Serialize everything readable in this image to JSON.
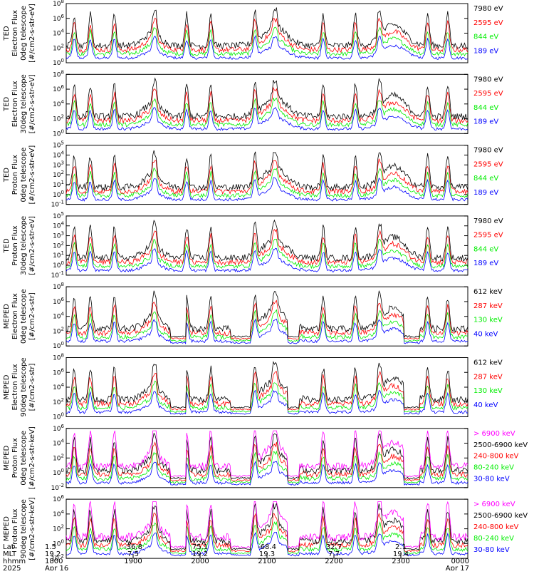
{
  "colors": {
    "black": "#000000",
    "red": "#ff0000",
    "green": "#00ee00",
    "blue": "#0000ff",
    "magenta": "#ff00ff"
  },
  "chart_data": [
    {
      "type": "line",
      "title_lines": [
        "TED",
        "Electron Flux",
        "0deg telescope",
        "[#/cm2-s-str-eV]"
      ],
      "ylim_exp": [
        0,
        8
      ],
      "ytick_labels": [
        "10^0",
        "10^2",
        "10^4",
        "10^6",
        "10^8"
      ],
      "series": [
        {
          "name": "7980 eV",
          "color": "black"
        },
        {
          "name": "2595 eV",
          "color": "red"
        },
        {
          "name": "844 eV",
          "color": "green"
        },
        {
          "name": "189 eV",
          "color": "blue"
        }
      ]
    },
    {
      "type": "line",
      "title_lines": [
        "TED",
        "Electron Flux",
        "30deg telescope",
        "[#/cm2-s-str-eV]"
      ],
      "ylim_exp": [
        0,
        8
      ],
      "ytick_labels": [
        "10^0",
        "10^2",
        "10^4",
        "10^6",
        "10^8"
      ],
      "series": [
        {
          "name": "7980 eV",
          "color": "black"
        },
        {
          "name": "2595 eV",
          "color": "red"
        },
        {
          "name": "844 eV",
          "color": "green"
        },
        {
          "name": "189 eV",
          "color": "blue"
        }
      ]
    },
    {
      "type": "line",
      "title_lines": [
        "TED",
        "Proton Flux",
        "0deg telescope",
        "[#/cm2-s-str-eV]"
      ],
      "ylim_exp": [
        -1,
        5
      ],
      "ytick_labels": [
        "10^-1",
        "10^0",
        "10^1",
        "10^2",
        "10^3",
        "10^4",
        "10^5"
      ],
      "series": [
        {
          "name": "7980 eV",
          "color": "black"
        },
        {
          "name": "2595 eV",
          "color": "red"
        },
        {
          "name": "844 eV",
          "color": "green"
        },
        {
          "name": "189 eV",
          "color": "blue"
        }
      ]
    },
    {
      "type": "line",
      "title_lines": [
        "TED",
        "Proton Flux",
        "30deg telescope",
        "[#/cm2-s-str-eV]"
      ],
      "ylim_exp": [
        -1,
        5
      ],
      "ytick_labels": [
        "10^-1",
        "10^0",
        "10^1",
        "10^2",
        "10^3",
        "10^4",
        "10^5"
      ],
      "series": [
        {
          "name": "7980 eV",
          "color": "black"
        },
        {
          "name": "2595 eV",
          "color": "red"
        },
        {
          "name": "844 eV",
          "color": "green"
        },
        {
          "name": "189 eV",
          "color": "blue"
        }
      ]
    },
    {
      "type": "line",
      "title_lines": [
        "MEPED",
        "Electron Flux",
        "0deg telescope",
        "[#/cm2-s-str]"
      ],
      "ylim_exp": [
        0,
        8
      ],
      "ytick_labels": [
        "10^0",
        "10^2",
        "10^4",
        "10^6",
        "10^8"
      ],
      "series": [
        {
          "name": "612 keV",
          "color": "black"
        },
        {
          "name": "287 keV",
          "color": "red"
        },
        {
          "name": "130 keV",
          "color": "green"
        },
        {
          "name": "40 keV",
          "color": "blue"
        }
      ]
    },
    {
      "type": "line",
      "title_lines": [
        "MEPED",
        "Electron Flux",
        "90deg telescope",
        "[#/cm2-s-str]"
      ],
      "ylim_exp": [
        0,
        8
      ],
      "ytick_labels": [
        "10^0",
        "10^2",
        "10^4",
        "10^6",
        "10^8"
      ],
      "series": [
        {
          "name": "612 keV",
          "color": "black"
        },
        {
          "name": "287 keV",
          "color": "red"
        },
        {
          "name": "130 keV",
          "color": "green"
        },
        {
          "name": "40 keV",
          "color": "blue"
        }
      ]
    },
    {
      "type": "line",
      "title_lines": [
        "MEPED",
        "Proton Flux",
        "0deg telescope",
        "[#/cm2-s-str-keV]"
      ],
      "ylim_exp": [
        -3,
        6
      ],
      "ytick_labels": [
        "10^-2",
        "10^0",
        "10^2",
        "10^4",
        "10^6"
      ],
      "series": [
        {
          "name": "> 6900 keV",
          "color": "magenta"
        },
        {
          "name": "2500-6900 keV",
          "color": "black"
        },
        {
          "name": "240-800 keV",
          "color": "red"
        },
        {
          "name": "80-240 keV",
          "color": "green"
        },
        {
          "name": "30-80 keV",
          "color": "blue"
        }
      ]
    },
    {
      "type": "line",
      "title_lines": [
        "MEPED",
        "Proton Flux",
        "90deg telescope",
        "[#/cm2-s-str-keV]"
      ],
      "ylim_exp": [
        -3,
        6
      ],
      "ytick_labels": [
        "10^-2",
        "10^0",
        "10^2",
        "10^4",
        "10^6"
      ],
      "series": [
        {
          "name": "> 6900 keV",
          "color": "magenta"
        },
        {
          "name": "2500-6900 keV",
          "color": "black"
        },
        {
          "name": "240-800 keV",
          "color": "red"
        },
        {
          "name": "80-240 keV",
          "color": "green"
        },
        {
          "name": "30-80 keV",
          "color": "blue"
        }
      ]
    }
  ],
  "x_axis": {
    "row_labels": [
      "Lat",
      "MLT",
      "hhmm",
      "2025"
    ],
    "ticks": [
      {
        "lat": "1.5",
        "mlt": "19.2",
        "hhmm": "1800",
        "date": "Apr 16"
      },
      {
        "lat": "-36.8",
        "mlt": "7.5",
        "hhmm": "1900",
        "date": ""
      },
      {
        "lat": "75.1",
        "mlt": "19.2",
        "hhmm": "2000",
        "date": ""
      },
      {
        "lat": "-68.4",
        "mlt": "19.3",
        "hhmm": "2100",
        "date": ""
      },
      {
        "lat": "32.7",
        "mlt": "7.7",
        "hhmm": "2200",
        "date": ""
      },
      {
        "lat": "2.1",
        "mlt": "19.4",
        "hhmm": "2300",
        "date": ""
      },
      {
        "lat": "",
        "mlt": "",
        "hhmm": "0000",
        "date": "Apr 17"
      }
    ]
  }
}
